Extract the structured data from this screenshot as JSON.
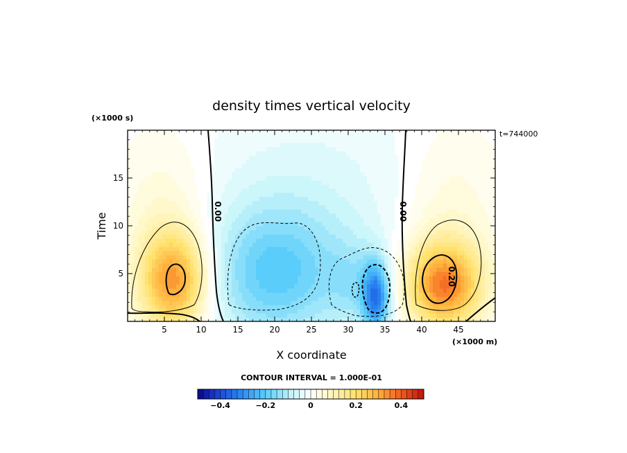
{
  "chart_data": {
    "type": "heatmap",
    "title": "density times vertical velocity",
    "xlabel": "X coordinate",
    "ylabel": "Time",
    "x_unit": "(×1000 m)",
    "y_unit": "(×1000 s)",
    "time_note": "t=744000",
    "xlim": [
      0,
      50
    ],
    "ylim": [
      0,
      20
    ],
    "x_ticks": [
      5,
      10,
      15,
      20,
      25,
      30,
      35,
      40,
      45
    ],
    "y_ticks": [
      5,
      10,
      15
    ],
    "contour_interval_text": "CONTOUR INTERVAL = 1.000E-01",
    "contour_labels": [
      {
        "text": "0.00",
        "x": 12.2,
        "y": 11.5
      },
      {
        "text": "0.00",
        "x": 37.4,
        "y": 11.5
      },
      {
        "text": "0.20",
        "x": 44.0,
        "y": 4.7
      }
    ],
    "colorbar": {
      "range": [
        -0.5,
        0.5
      ],
      "ticks": [
        -0.4,
        -0.2,
        0,
        0.2,
        0.4
      ],
      "tick_labels": [
        "−0.4",
        "−0.2",
        "0",
        "0.2",
        "0.4"
      ]
    },
    "features": [
      {
        "name": "left updraft",
        "x": 6.3,
        "y": 4.2,
        "peak": 0.33
      },
      {
        "name": "central downdraft",
        "x": 20,
        "y": 5,
        "peak": -0.19
      },
      {
        "name": "strong downdraft",
        "x": 33.8,
        "y": 2.5,
        "peak": -0.42
      },
      {
        "name": "right updraft",
        "x": 43,
        "y": 3.8,
        "peak": 0.37
      }
    ]
  }
}
